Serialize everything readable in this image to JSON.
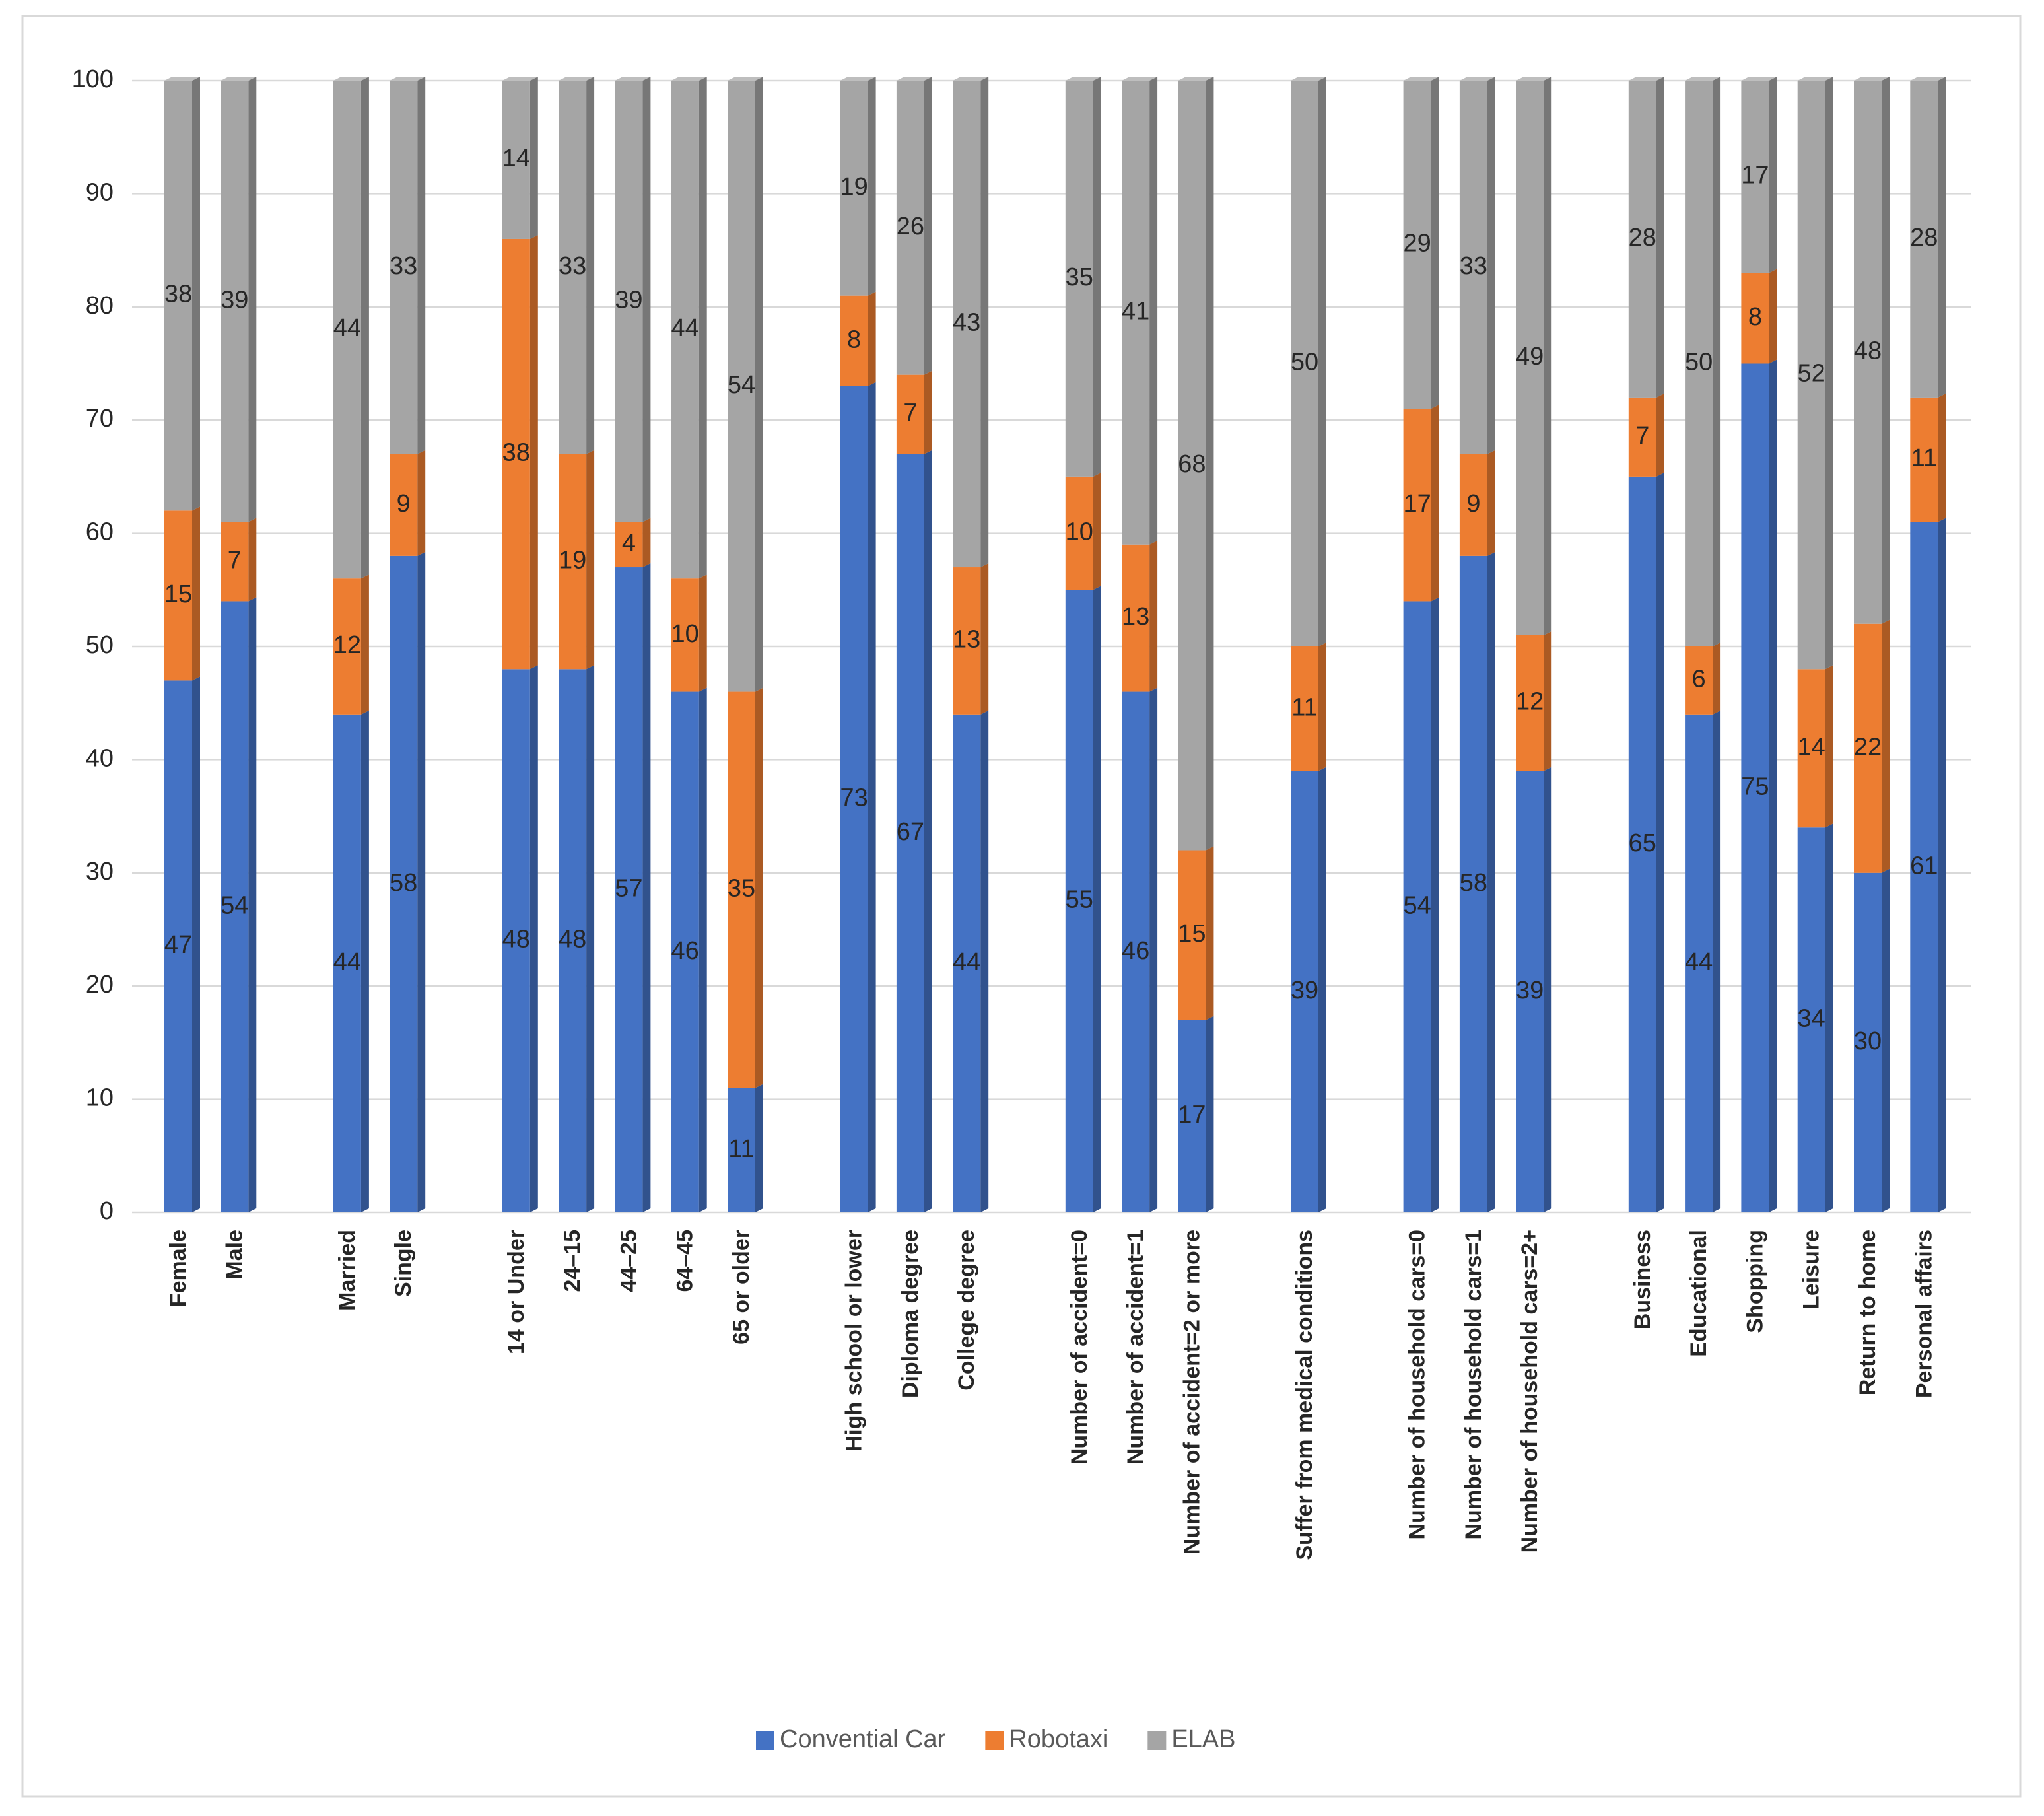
{
  "chart_data": {
    "type": "stacked_bar",
    "categories": [
      "Female",
      "Male",
      null,
      "Married",
      "Single",
      null,
      "14 or Under",
      "24–15",
      "44–25",
      "64–45",
      "65 or older",
      null,
      "High school or lower",
      "Diploma degree",
      "College degree",
      null,
      "Number of accident=0",
      "Number of accident=1",
      "Number of accident=2 or more",
      null,
      "Suffer from medical conditions",
      null,
      "Number of household cars=0",
      "Number of household cars=1",
      "Number of household cars=2+",
      null,
      "Business",
      "Educational",
      "Shopping",
      "Leisure",
      "Return to home",
      "Personal affairs"
    ],
    "series": [
      {
        "name": "Convential Car",
        "color": "#4472c4",
        "values": [
          47,
          54,
          null,
          44,
          58,
          null,
          48,
          48,
          57,
          46,
          11,
          null,
          73,
          67,
          44,
          null,
          55,
          46,
          17,
          null,
          39,
          null,
          54,
          58,
          39,
          null,
          65,
          44,
          75,
          34,
          30,
          61
        ]
      },
      {
        "name": "Robotaxi",
        "color": "#ed7d31",
        "values": [
          15,
          7,
          null,
          12,
          9,
          null,
          38,
          19,
          4,
          10,
          35,
          null,
          8,
          7,
          13,
          null,
          10,
          13,
          15,
          null,
          11,
          null,
          17,
          9,
          12,
          null,
          7,
          6,
          8,
          14,
          22,
          11
        ]
      },
      {
        "name": "ELAB",
        "color": "#a5a5a5",
        "values": [
          38,
          39,
          null,
          44,
          33,
          null,
          14,
          33,
          39,
          44,
          54,
          null,
          19,
          26,
          43,
          null,
          35,
          41,
          68,
          null,
          50,
          null,
          29,
          33,
          49,
          null,
          28,
          50,
          17,
          52,
          48,
          28
        ]
      }
    ],
    "ylim": [
      0,
      100
    ],
    "yticks": [
      0,
      10,
      20,
      30,
      40,
      50,
      60,
      70,
      80,
      90,
      100
    ],
    "grid": true,
    "legend": "bottom"
  }
}
